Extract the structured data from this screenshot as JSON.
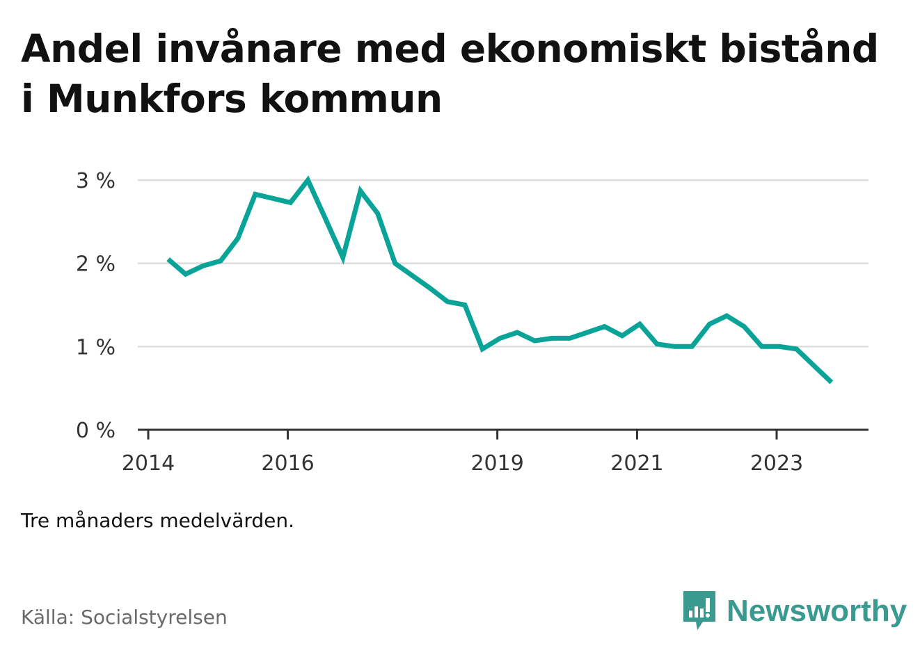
{
  "title": "Andel invånare med ekonomiskt bistånd i Munkfors kommun",
  "note": "Tre månaders medelvärden.",
  "source": "Källa: Socialstyrelsen",
  "brand": {
    "name": "Newsworthy",
    "icon": "newsworthy-logo-icon",
    "color": "#3a9a8f"
  },
  "colors": {
    "line": "#0aa398",
    "grid": "#dddddd",
    "axis": "#333333"
  },
  "chart_data": {
    "type": "line",
    "title": "Andel invånare med ekonomiskt bistånd i Munkfors kommun",
    "xlabel": "",
    "ylabel": "",
    "x_ticks": [
      "2014",
      "2016",
      "2019",
      "2021",
      "2023"
    ],
    "y_ticks": [
      "0 %",
      "1 %",
      "2 %",
      "3 %"
    ],
    "ylim": [
      0,
      3
    ],
    "xlim": [
      "2014-01-01",
      "2024-05-01"
    ],
    "grid": true,
    "series": [
      {
        "color": "#0aa398",
        "x": [
          "2014-04",
          "2014-07",
          "2014-10",
          "2015-01",
          "2015-04",
          "2015-07",
          "2015-10",
          "2016-01",
          "2016-04",
          "2016-07",
          "2016-10",
          "2017-01",
          "2017-04",
          "2017-07",
          "2017-10",
          "2018-01",
          "2018-04",
          "2018-07",
          "2018-10",
          "2019-01",
          "2019-04",
          "2019-07",
          "2019-10",
          "2020-01",
          "2020-04",
          "2020-07",
          "2020-10",
          "2021-01",
          "2021-04",
          "2021-07",
          "2021-10",
          "2022-01",
          "2022-04",
          "2022-07",
          "2022-10",
          "2023-01",
          "2023-04",
          "2023-07",
          "2023-10"
        ],
        "values": [
          2.05,
          1.87,
          1.97,
          2.03,
          2.3,
          2.83,
          2.78,
          2.73,
          3.0,
          2.54,
          2.07,
          2.87,
          2.6,
          2.0,
          1.85,
          1.7,
          1.54,
          1.5,
          0.97,
          1.1,
          1.17,
          1.07,
          1.1,
          1.1,
          1.17,
          1.24,
          1.13,
          1.27,
          1.03,
          1.0,
          1.0,
          1.27,
          1.37,
          1.24,
          1.0,
          1.0,
          0.97,
          0.77,
          0.57
        ]
      }
    ]
  }
}
